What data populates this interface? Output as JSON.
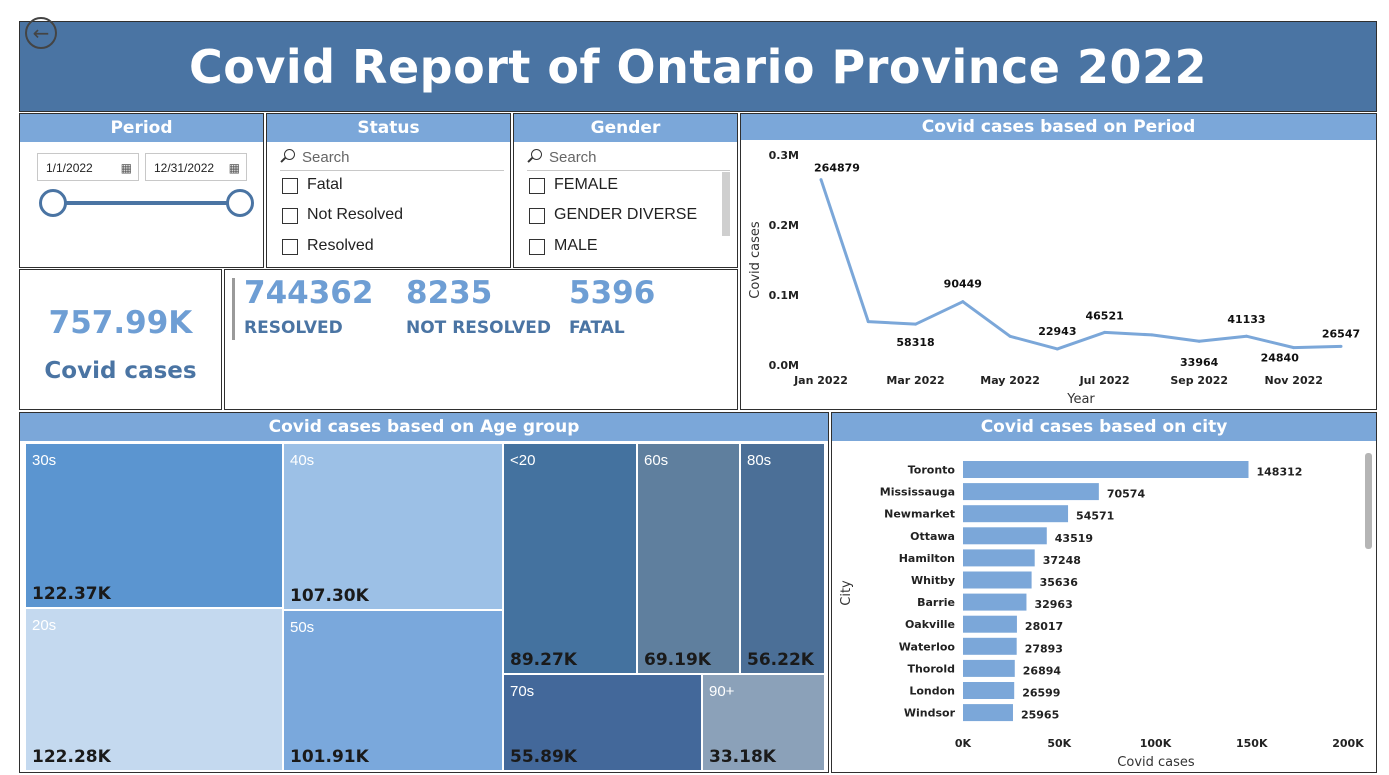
{
  "title": "Covid Report of Ontario Province 2022",
  "back_icon": "back-arrow-icon",
  "period": {
    "header": "Period",
    "start_date": "1/1/2022",
    "end_date": "12/31/2022"
  },
  "status": {
    "header": "Status",
    "search_placeholder": "Search",
    "options": [
      "Fatal",
      "Not Resolved",
      "Resolved"
    ]
  },
  "gender": {
    "header": "Gender",
    "search_placeholder": "Search",
    "options": [
      "FEMALE",
      "GENDER DIVERSE",
      "MALE"
    ]
  },
  "total_card": {
    "value": "757.99K",
    "label": "Covid cases"
  },
  "status_kpis": [
    {
      "value": "744362",
      "label": "RESOLVED"
    },
    {
      "value": "8235",
      "label": "NOT RESOLVED"
    },
    {
      "value": "5396",
      "label": "FATAL"
    }
  ],
  "colors": {
    "header_blue": "#7ba7d9",
    "title_blue": "#4a74a3",
    "line": "#7ba7d9",
    "bar": "#7ba7d9"
  },
  "chart_data": [
    {
      "type": "line",
      "title": "Covid cases based on Period",
      "xlabel": "Year",
      "ylabel": "Covid cases",
      "x": [
        "Jan 2022",
        "Feb 2022",
        "Mar 2022",
        "Apr 2022",
        "May 2022",
        "Jun 2022",
        "Jul 2022",
        "Aug 2022",
        "Sep 2022",
        "Oct 2022",
        "Nov 2022",
        "Dec 2022"
      ],
      "x_tick_labels": [
        "Jan 2022",
        "Mar 2022",
        "May 2022",
        "Jul 2022",
        "Sep 2022",
        "Nov 2022"
      ],
      "values": [
        264879,
        62000,
        58318,
        90449,
        41000,
        22943,
        46521,
        43000,
        33964,
        41133,
        24840,
        26547
      ],
      "data_labels": [
        {
          "index": 0,
          "text": "264879"
        },
        {
          "index": 2,
          "text": "58318"
        },
        {
          "index": 3,
          "text": "90449"
        },
        {
          "index": 5,
          "text": "22943"
        },
        {
          "index": 6,
          "text": "46521"
        },
        {
          "index": 8,
          "text": "33964"
        },
        {
          "index": 9,
          "text": "41133"
        },
        {
          "index": 10,
          "text": "24840"
        },
        {
          "index": 11,
          "text": "26547"
        }
      ],
      "y_ticks": [
        {
          "value": 0,
          "label": "0.0M"
        },
        {
          "value": 100000,
          "label": "0.1M"
        },
        {
          "value": 200000,
          "label": "0.2M"
        },
        {
          "value": 300000,
          "label": "0.3M"
        }
      ],
      "ylim": [
        0,
        300000
      ]
    },
    {
      "type": "treemap",
      "title": "Covid cases based on Age group",
      "items": [
        {
          "label": "30s",
          "value_label": "122.37K",
          "color": "#5b95d0",
          "dark_text": true
        },
        {
          "label": "20s",
          "value_label": "122.28K",
          "color": "#c4d9ef",
          "dark_text": true
        },
        {
          "label": "40s",
          "value_label": "107.30K",
          "color": "#9cc0e6",
          "dark_text": true
        },
        {
          "label": "50s",
          "value_label": "101.91K",
          "color": "#7aa8dc",
          "dark_text": true
        },
        {
          "label": "<20",
          "value_label": "89.27K",
          "color": "#44729f",
          "dark_text": true
        },
        {
          "label": "60s",
          "value_label": "69.19K",
          "color": "#5f7f9e",
          "dark_text": true
        },
        {
          "label": "80s",
          "value_label": "56.22K",
          "color": "#4b6f97",
          "dark_text": true
        },
        {
          "label": "70s",
          "value_label": "55.89K",
          "color": "#43689a",
          "dark_text": true
        },
        {
          "label": "90+",
          "value_label": "33.18K",
          "color": "#8ba1b9",
          "dark_text": true
        }
      ]
    },
    {
      "type": "bar",
      "orientation": "horizontal",
      "title": "Covid cases based on city",
      "xlabel": "Covid cases",
      "ylabel": "City",
      "categories": [
        "Toronto",
        "Mississauga",
        "Newmarket",
        "Ottawa",
        "Hamilton",
        "Whitby",
        "Barrie",
        "Oakville",
        "Waterloo",
        "Thorold",
        "London",
        "Windsor"
      ],
      "values": [
        148312,
        70574,
        54571,
        43519,
        37248,
        35636,
        32963,
        28017,
        27893,
        26894,
        26599,
        25965
      ],
      "x_ticks": [
        {
          "value": 0,
          "label": "0K"
        },
        {
          "value": 50000,
          "label": "50K"
        },
        {
          "value": 100000,
          "label": "100K"
        },
        {
          "value": 150000,
          "label": "150K"
        },
        {
          "value": 200000,
          "label": "200K"
        }
      ],
      "xlim": [
        0,
        200000
      ]
    }
  ]
}
